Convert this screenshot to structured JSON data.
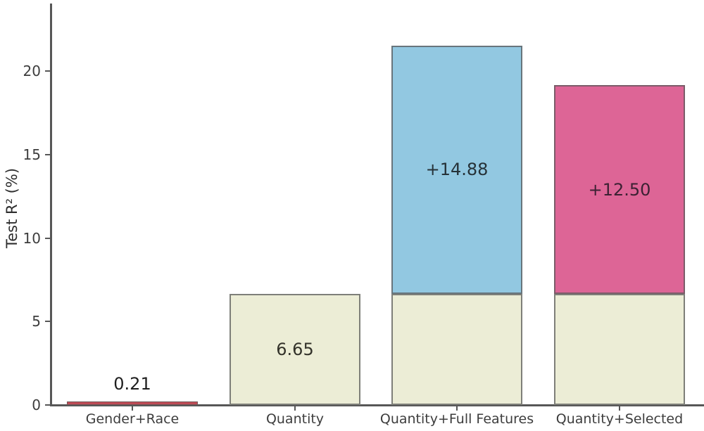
{
  "chart_data": {
    "type": "bar",
    "stacked": true,
    "title": "",
    "xlabel": "",
    "ylabel": "Test R² (%)",
    "ylim": [
      0,
      24.1
    ],
    "yticks": [
      0,
      5,
      10,
      15,
      20
    ],
    "grid": false,
    "legend": "none",
    "categories": [
      "Gender+Race",
      "Quantity",
      "Quantity+Full Features",
      "Quantity+Selected"
    ],
    "totals": [
      0.21,
      6.65,
      21.53,
      19.15
    ],
    "bars": [
      {
        "category": "Gender+Race",
        "segments": [
          {
            "name": "gender-race-value",
            "value": 0.21,
            "color": "#bf4b55"
          }
        ],
        "annotation": {
          "text": "0.21",
          "placement": "above",
          "color": "#1f1f1f"
        }
      },
      {
        "category": "Quantity",
        "segments": [
          {
            "name": "quantity-base",
            "value": 6.65,
            "color": "#ecedd6"
          }
        ],
        "annotation": {
          "text": "6.65",
          "placement": "inside-top-segment",
          "color": "#33322a"
        }
      },
      {
        "category": "Quantity+Full Features",
        "segments": [
          {
            "name": "quantity-base",
            "value": 6.65,
            "color": "#ecedd6"
          },
          {
            "name": "full-features-gain",
            "value": 14.88,
            "color": "#92c8e1"
          }
        ],
        "annotation": {
          "text": "+14.88",
          "placement": "inside-top-segment",
          "color": "#263238"
        }
      },
      {
        "category": "Quantity+Selected",
        "segments": [
          {
            "name": "quantity-base",
            "value": 6.65,
            "color": "#ecedd6"
          },
          {
            "name": "selected-gain",
            "value": 12.5,
            "color": "#dd6596"
          }
        ],
        "annotation": {
          "text": "+12.50",
          "placement": "inside-top-segment",
          "color": "#3c2133"
        }
      }
    ],
    "colors": {
      "bar_edge": "#5a5a5a",
      "axis": "#575757",
      "tick_labels": "#3d3d3d",
      "background": "#ffffff"
    }
  }
}
